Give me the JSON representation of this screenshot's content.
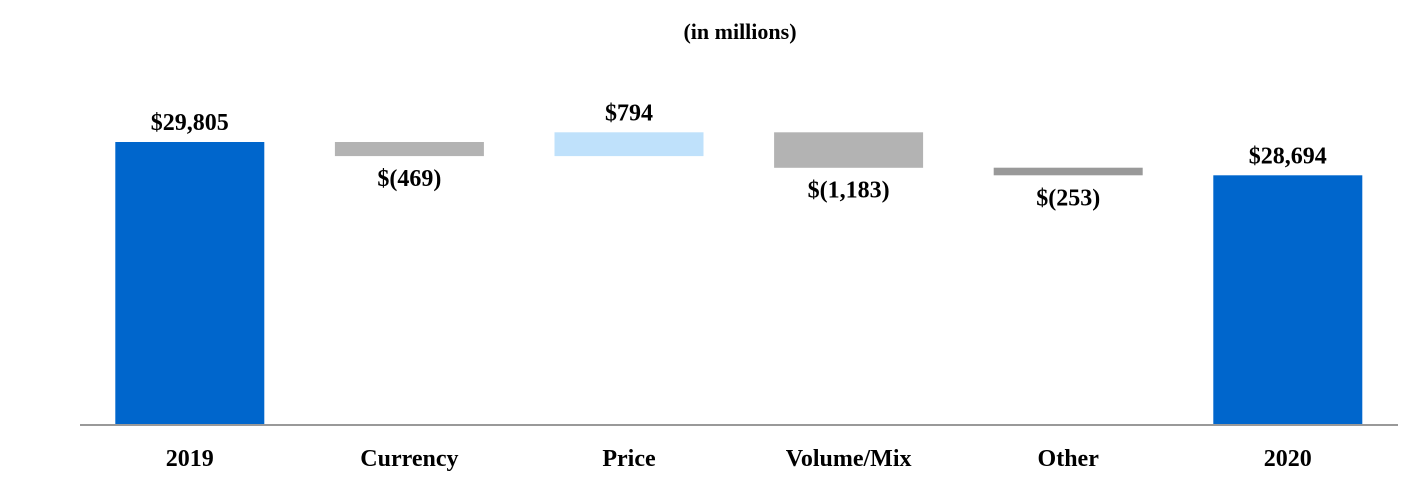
{
  "chart_data": {
    "type": "bar",
    "subtitle": "(in millions)",
    "categories": [
      "2019",
      "Currency",
      "Price",
      "Volume/Mix",
      "Other",
      "2020"
    ],
    "values": [
      29805,
      -469,
      794,
      -1183,
      -253,
      28694
    ],
    "value_labels": [
      "$29,805",
      "$(469)",
      "$794",
      "$(1,183)",
      "$(253)",
      "$28,694"
    ],
    "bar_kinds": [
      "total",
      "delta",
      "delta",
      "delta",
      "delta",
      "total"
    ],
    "colors": [
      "#0066CC",
      "#B3B3B3",
      "#BFE1FB",
      "#B3B3B3",
      "#999999",
      "#0066CC"
    ],
    "axis_color": "#999999",
    "y_axis_shown": false,
    "grid": false,
    "legend": "none"
  }
}
